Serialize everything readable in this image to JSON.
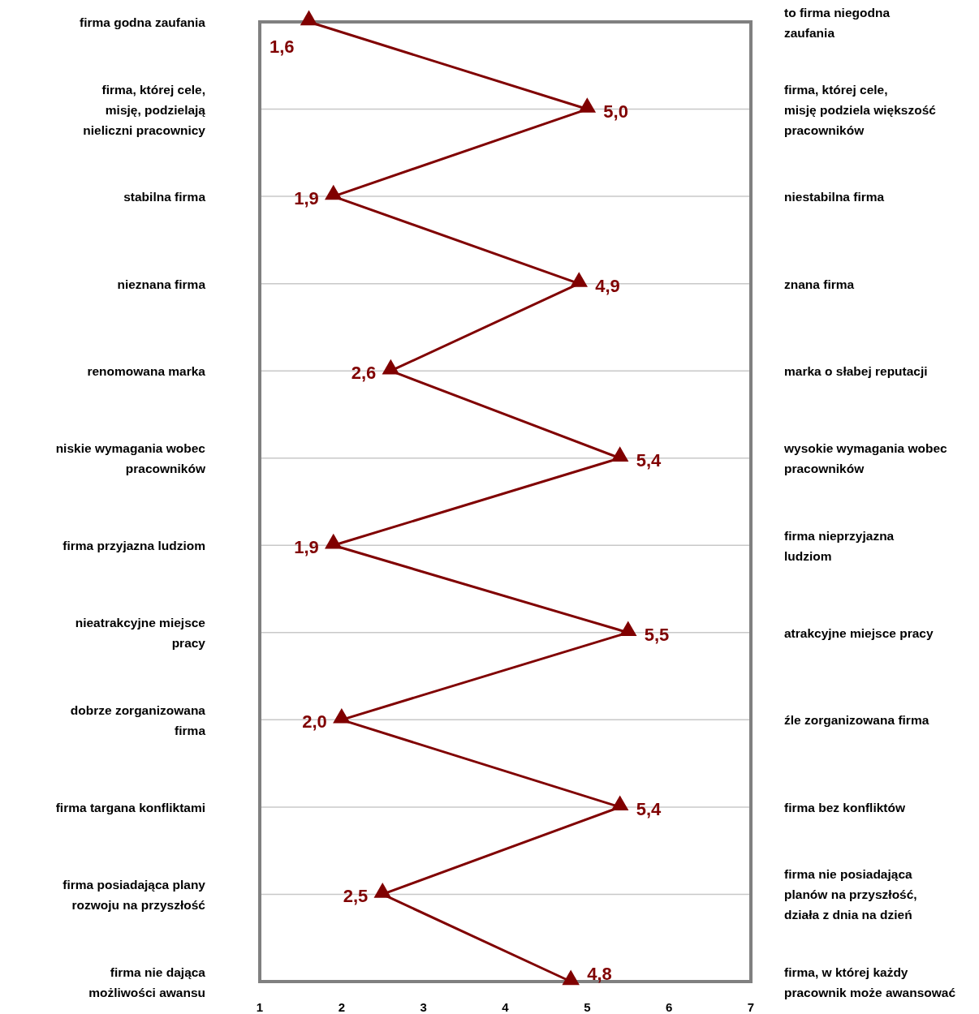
{
  "chart_data": {
    "type": "line",
    "orientation": "horizontal",
    "categories": [
      "firma godna zaufania",
      "firma, której cele, misję, podzielają nieliczni pracownicy",
      "stabilna firma",
      "nieznana firma",
      "renomowana marka",
      "niskie wymagania wobec pracowników",
      "firma przyjazna ludziom",
      "nieatrakcyjne miejsce pracy",
      "dobrze zorganizowana firma",
      "firma targana konfliktami",
      "firma posiadająca plany rozwoju na przyszłość",
      "firma nie dająca możliwości awansu"
    ],
    "y2_categories": [
      "to firma niegodna zaufania",
      "firma, której cele, misję podziela większość pracowników",
      "niestabilna firma",
      "znana firma",
      "marka o słabej reputacji",
      "wysokie wymagania wobec pracowników",
      "firma nieprzyjazna ludziom",
      "atrakcyjne miejsce pracy",
      "źle zorganizowana firma",
      "firma bez konfliktów",
      "firma nie posiadająca planów na przyszłość, działa z dnia na dzień",
      "firma, w której każdy pracownik może awansować"
    ],
    "series": [
      {
        "color": "#800000",
        "values": [
          1.6,
          5.0,
          1.9,
          4.9,
          2.6,
          5.4,
          1.9,
          5.5,
          2.0,
          5.4,
          2.5,
          4.8
        ],
        "value_labels": [
          "1,6",
          "5,0",
          "1,9",
          "4,9",
          "2,6",
          "5,4",
          "1,9",
          "5,5",
          "2,0",
          "5,4",
          "2,5",
          "4,8"
        ]
      }
    ],
    "xlim": [
      1,
      7
    ],
    "xticks": [
      1,
      2,
      3,
      4,
      5,
      6,
      7
    ],
    "grid": true,
    "marker": "triangle",
    "line_style": "solid"
  }
}
